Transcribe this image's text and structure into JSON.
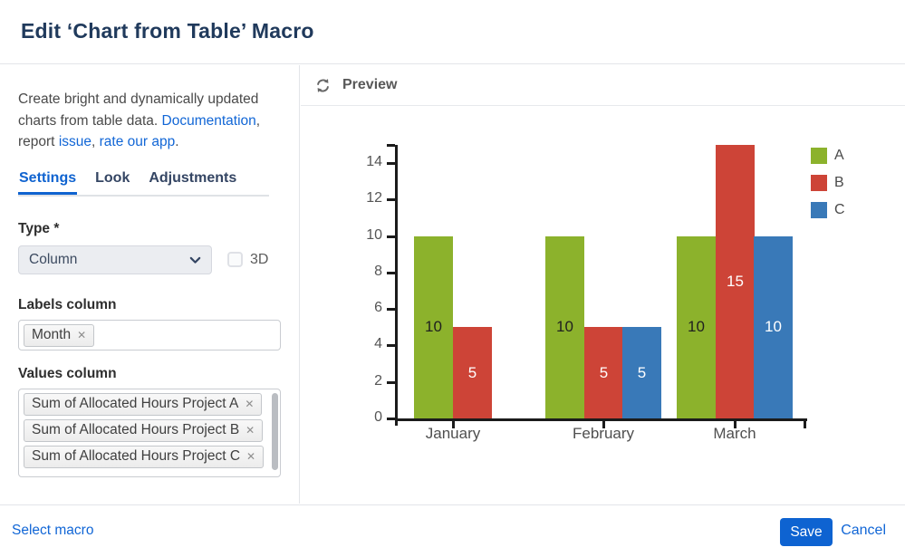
{
  "dialog": {
    "title": "Edit ‘Chart from Table’ Macro"
  },
  "sidebar": {
    "description_segments": [
      {
        "text": "Create bright and dynamically updated charts from table data. "
      },
      {
        "text": "Documentation",
        "link": true
      },
      {
        "text": ", report "
      },
      {
        "text": "issue",
        "link": true
      },
      {
        "text": ", "
      },
      {
        "text": "rate our app",
        "link": true
      },
      {
        "text": "."
      }
    ],
    "tabs": [
      {
        "label": "Settings",
        "active": true
      },
      {
        "label": "Look",
        "active": false
      },
      {
        "label": "Adjustments",
        "active": false
      }
    ],
    "type_field": {
      "label": "Type *",
      "value": "Column"
    },
    "checkbox_3d": {
      "label": "3D",
      "checked": false
    },
    "labels_column": {
      "label": "Labels column",
      "tags": [
        "Month"
      ]
    },
    "values_column": {
      "label": "Values column",
      "tags": [
        "Sum of Allocated Hours Project A",
        "Sum of Allocated Hours Project B",
        "Sum of Allocated Hours Project C"
      ]
    }
  },
  "preview": {
    "title": "Preview",
    "refresh_icon": "refresh-icon"
  },
  "chart_data": {
    "type": "bar",
    "categories": [
      "January",
      "February",
      "March"
    ],
    "series": [
      {
        "name": "A",
        "color": "#8cb22c",
        "label_color": "#1f1f1f",
        "values": [
          10,
          10,
          10
        ]
      },
      {
        "name": "B",
        "color": "#cd4437",
        "label_color": "#ffffff",
        "values": [
          5,
          5,
          15
        ]
      },
      {
        "name": "C",
        "color": "#3979b8",
        "label_color": "#ffffff",
        "values": [
          0,
          5,
          10
        ]
      }
    ],
    "ylim": [
      0,
      15
    ],
    "yticks": [
      0,
      2,
      4,
      6,
      8,
      10,
      12,
      14
    ],
    "show_bar_labels": true,
    "hide_zero_bars": true,
    "gridlines": false,
    "legend_position": "top-right",
    "title": "",
    "xlabel": "",
    "ylabel": ""
  },
  "footer": {
    "select_macro": "Select macro",
    "save": "Save",
    "cancel": "Cancel"
  },
  "colors": {
    "accent_blue": "#0f63d0",
    "link_blue": "#1166d6",
    "save_button": "#0e63d1",
    "title_navy": "#203a5c",
    "axis_black": "#1b1b1b"
  }
}
